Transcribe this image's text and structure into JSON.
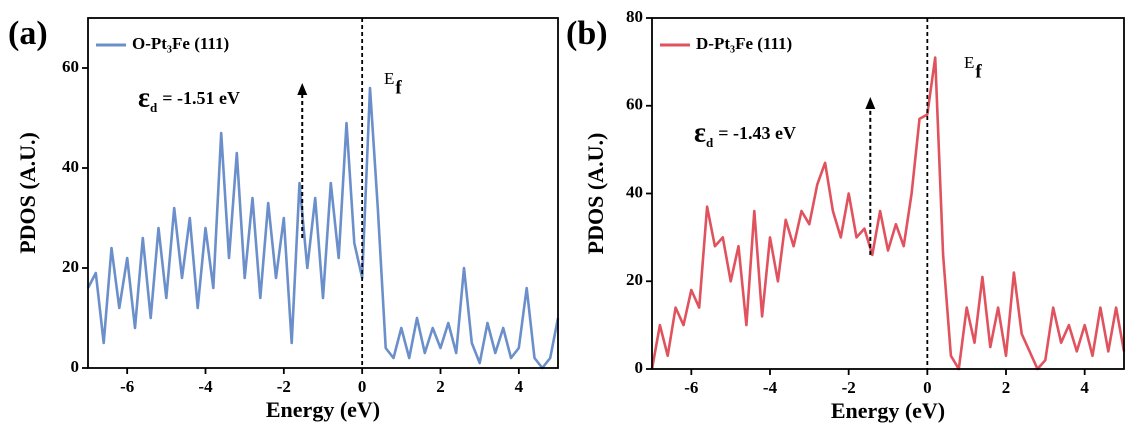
{
  "chart_data": [
    {
      "type": "line",
      "panel_label": "(a)",
      "xlabel": "Energy (eV)",
      "ylabel": "PDOS (A.U.)",
      "xlim": [
        -7,
        5
      ],
      "ylim": [
        0,
        70
      ],
      "xticks": [
        -6,
        -4,
        -2,
        0,
        2,
        4
      ],
      "yticks": [
        0,
        20,
        40,
        60
      ],
      "vline": 0,
      "vline_label": {
        "main": "E",
        "sub": "f"
      },
      "annotation": {
        "symbol": "ε",
        "sub": "d",
        "text": "= -1.51 eV"
      },
      "arrow": {
        "x": -1.53,
        "y0": 26,
        "y1": 57
      },
      "series": [
        {
          "name": "O-Pt₃Fe (111)",
          "color": "#6b8fca",
          "x": [
            -7,
            -6.8,
            -6.6,
            -6.4,
            -6.2,
            -6,
            -5.8,
            -5.6,
            -5.4,
            -5.2,
            -5,
            -4.8,
            -4.6,
            -4.4,
            -4.2,
            -4,
            -3.8,
            -3.6,
            -3.4,
            -3.2,
            -3,
            -2.8,
            -2.6,
            -2.4,
            -2.2,
            -2,
            -1.8,
            -1.6,
            -1.4,
            -1.2,
            -1,
            -0.8,
            -0.6,
            -0.4,
            -0.2,
            0,
            0.2,
            0.4,
            0.6,
            0.8,
            1,
            1.2,
            1.4,
            1.6,
            1.8,
            2,
            2.2,
            2.4,
            2.6,
            2.8,
            3,
            3.2,
            3.4,
            3.6,
            3.8,
            4,
            4.2,
            4.4,
            4.6,
            4.8,
            5
          ],
          "values": [
            16,
            19,
            5,
            24,
            12,
            22,
            8,
            26,
            10,
            28,
            14,
            32,
            18,
            30,
            12,
            28,
            16,
            47,
            22,
            43,
            18,
            34,
            14,
            33,
            18,
            30,
            5,
            37,
            20,
            34,
            14,
            37,
            22,
            49,
            25,
            18,
            56,
            32,
            4,
            2,
            8,
            2,
            10,
            3,
            8,
            4,
            9,
            3,
            20,
            5,
            1,
            9,
            3,
            8,
            2,
            4,
            16,
            2,
            0,
            2,
            10
          ]
        }
      ]
    },
    {
      "type": "line",
      "panel_label": "(b)",
      "xlabel": "Energy (eV)",
      "ylabel": "PDOS (A.U.)",
      "xlim": [
        -7,
        5
      ],
      "ylim": [
        0,
        80
      ],
      "xticks": [
        -6,
        -4,
        -2,
        0,
        2,
        4
      ],
      "yticks": [
        0,
        20,
        40,
        60,
        80
      ],
      "vline": 0,
      "vline_label": {
        "main": "E",
        "sub": "f"
      },
      "annotation": {
        "symbol": "ε",
        "sub": "d",
        "text": "= -1.43 eV"
      },
      "arrow": {
        "x": -1.45,
        "y0": 26,
        "y1": 62
      },
      "series": [
        {
          "name": "D-Pt₃Fe (111)",
          "color": "#e0525e",
          "x": [
            -7,
            -6.8,
            -6.6,
            -6.4,
            -6.2,
            -6,
            -5.8,
            -5.6,
            -5.4,
            -5.2,
            -5,
            -4.8,
            -4.6,
            -4.4,
            -4.2,
            -4,
            -3.8,
            -3.6,
            -3.4,
            -3.2,
            -3,
            -2.8,
            -2.6,
            -2.4,
            -2.2,
            -2,
            -1.8,
            -1.6,
            -1.4,
            -1.2,
            -1,
            -0.8,
            -0.6,
            -0.4,
            -0.2,
            0,
            0.2,
            0.4,
            0.6,
            0.8,
            1,
            1.2,
            1.4,
            1.6,
            1.8,
            2,
            2.2,
            2.4,
            2.6,
            2.8,
            3,
            3.2,
            3.4,
            3.6,
            3.8,
            4,
            4.2,
            4.4,
            4.6,
            4.8,
            5
          ],
          "values": [
            0,
            10,
            3,
            14,
            10,
            18,
            14,
            37,
            28,
            30,
            20,
            28,
            10,
            36,
            12,
            30,
            20,
            34,
            28,
            36,
            33,
            42,
            47,
            36,
            30,
            40,
            30,
            32,
            26,
            36,
            27,
            33,
            28,
            40,
            57,
            58,
            71,
            26,
            3,
            0,
            14,
            6,
            21,
            5,
            14,
            3,
            22,
            8,
            4,
            0,
            2,
            14,
            6,
            10,
            4,
            10,
            3,
            14,
            4,
            14,
            4
          ]
        }
      ]
    }
  ]
}
